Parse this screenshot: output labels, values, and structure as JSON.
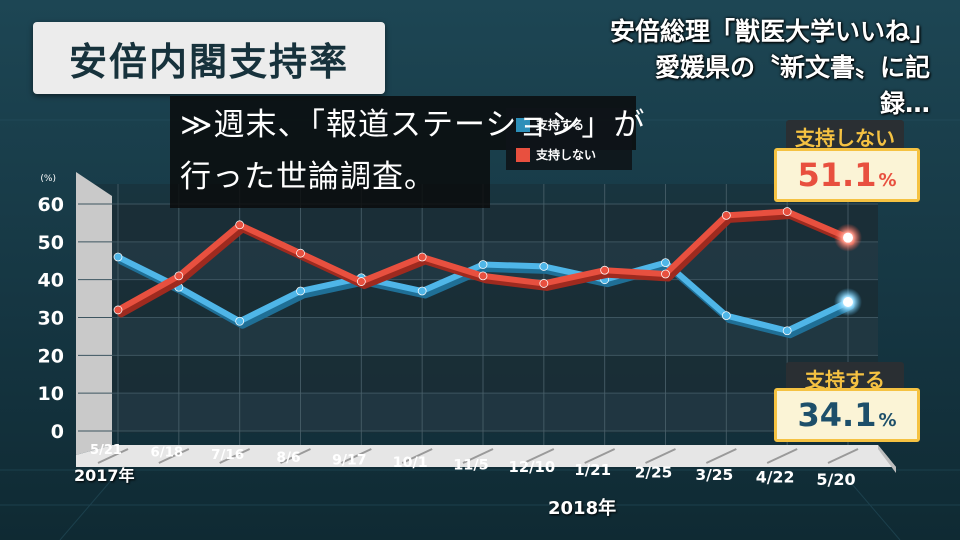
{
  "title": "安倍内閣支持率",
  "headline": {
    "line1": "安倍総理「獣医大学いいね」",
    "line2": "愛媛県の〝新文書〟に記録…"
  },
  "caption": {
    "line1": "≫週末、「報道ステーション」が",
    "line2": "行った世論調査。"
  },
  "legend": {
    "support": "支持する",
    "oppose": "支持しない"
  },
  "callouts": {
    "oppose_label": "支持しない",
    "oppose_value": "51.1",
    "support_label": "支持する",
    "support_value": "34.1",
    "pct": "%"
  },
  "years": {
    "y2017": "2017年",
    "y2018": "2018年"
  },
  "colors": {
    "support": "#4fb6e8",
    "oppose": "#e8503f",
    "accent": "#f5c242",
    "support_value_text": "#1d4f6a",
    "oppose_value_text": "#e8503f"
  },
  "chart_data": {
    "type": "line",
    "categories": [
      "5/21",
      "6/18",
      "7/16",
      "8/6",
      "9/17",
      "10/1",
      "11/5",
      "12/10",
      "1/21",
      "2/25",
      "3/25",
      "4/22",
      "5/20"
    ],
    "yunit": "(%)",
    "ylim": [
      0,
      60
    ],
    "yticks": [
      0,
      10,
      20,
      30,
      40,
      50,
      60
    ],
    "grid": true,
    "series": [
      {
        "name": "支持する",
        "key": "support",
        "values": [
          46,
          38,
          29,
          37,
          40.5,
          37,
          44,
          43.5,
          40,
          44.5,
          30.5,
          26.5,
          34.1
        ]
      },
      {
        "name": "支持しない",
        "key": "oppose",
        "values": [
          32,
          41,
          54.5,
          47,
          39.5,
          46,
          41,
          39,
          42.5,
          41.5,
          57,
          58,
          51.1
        ]
      }
    ]
  }
}
